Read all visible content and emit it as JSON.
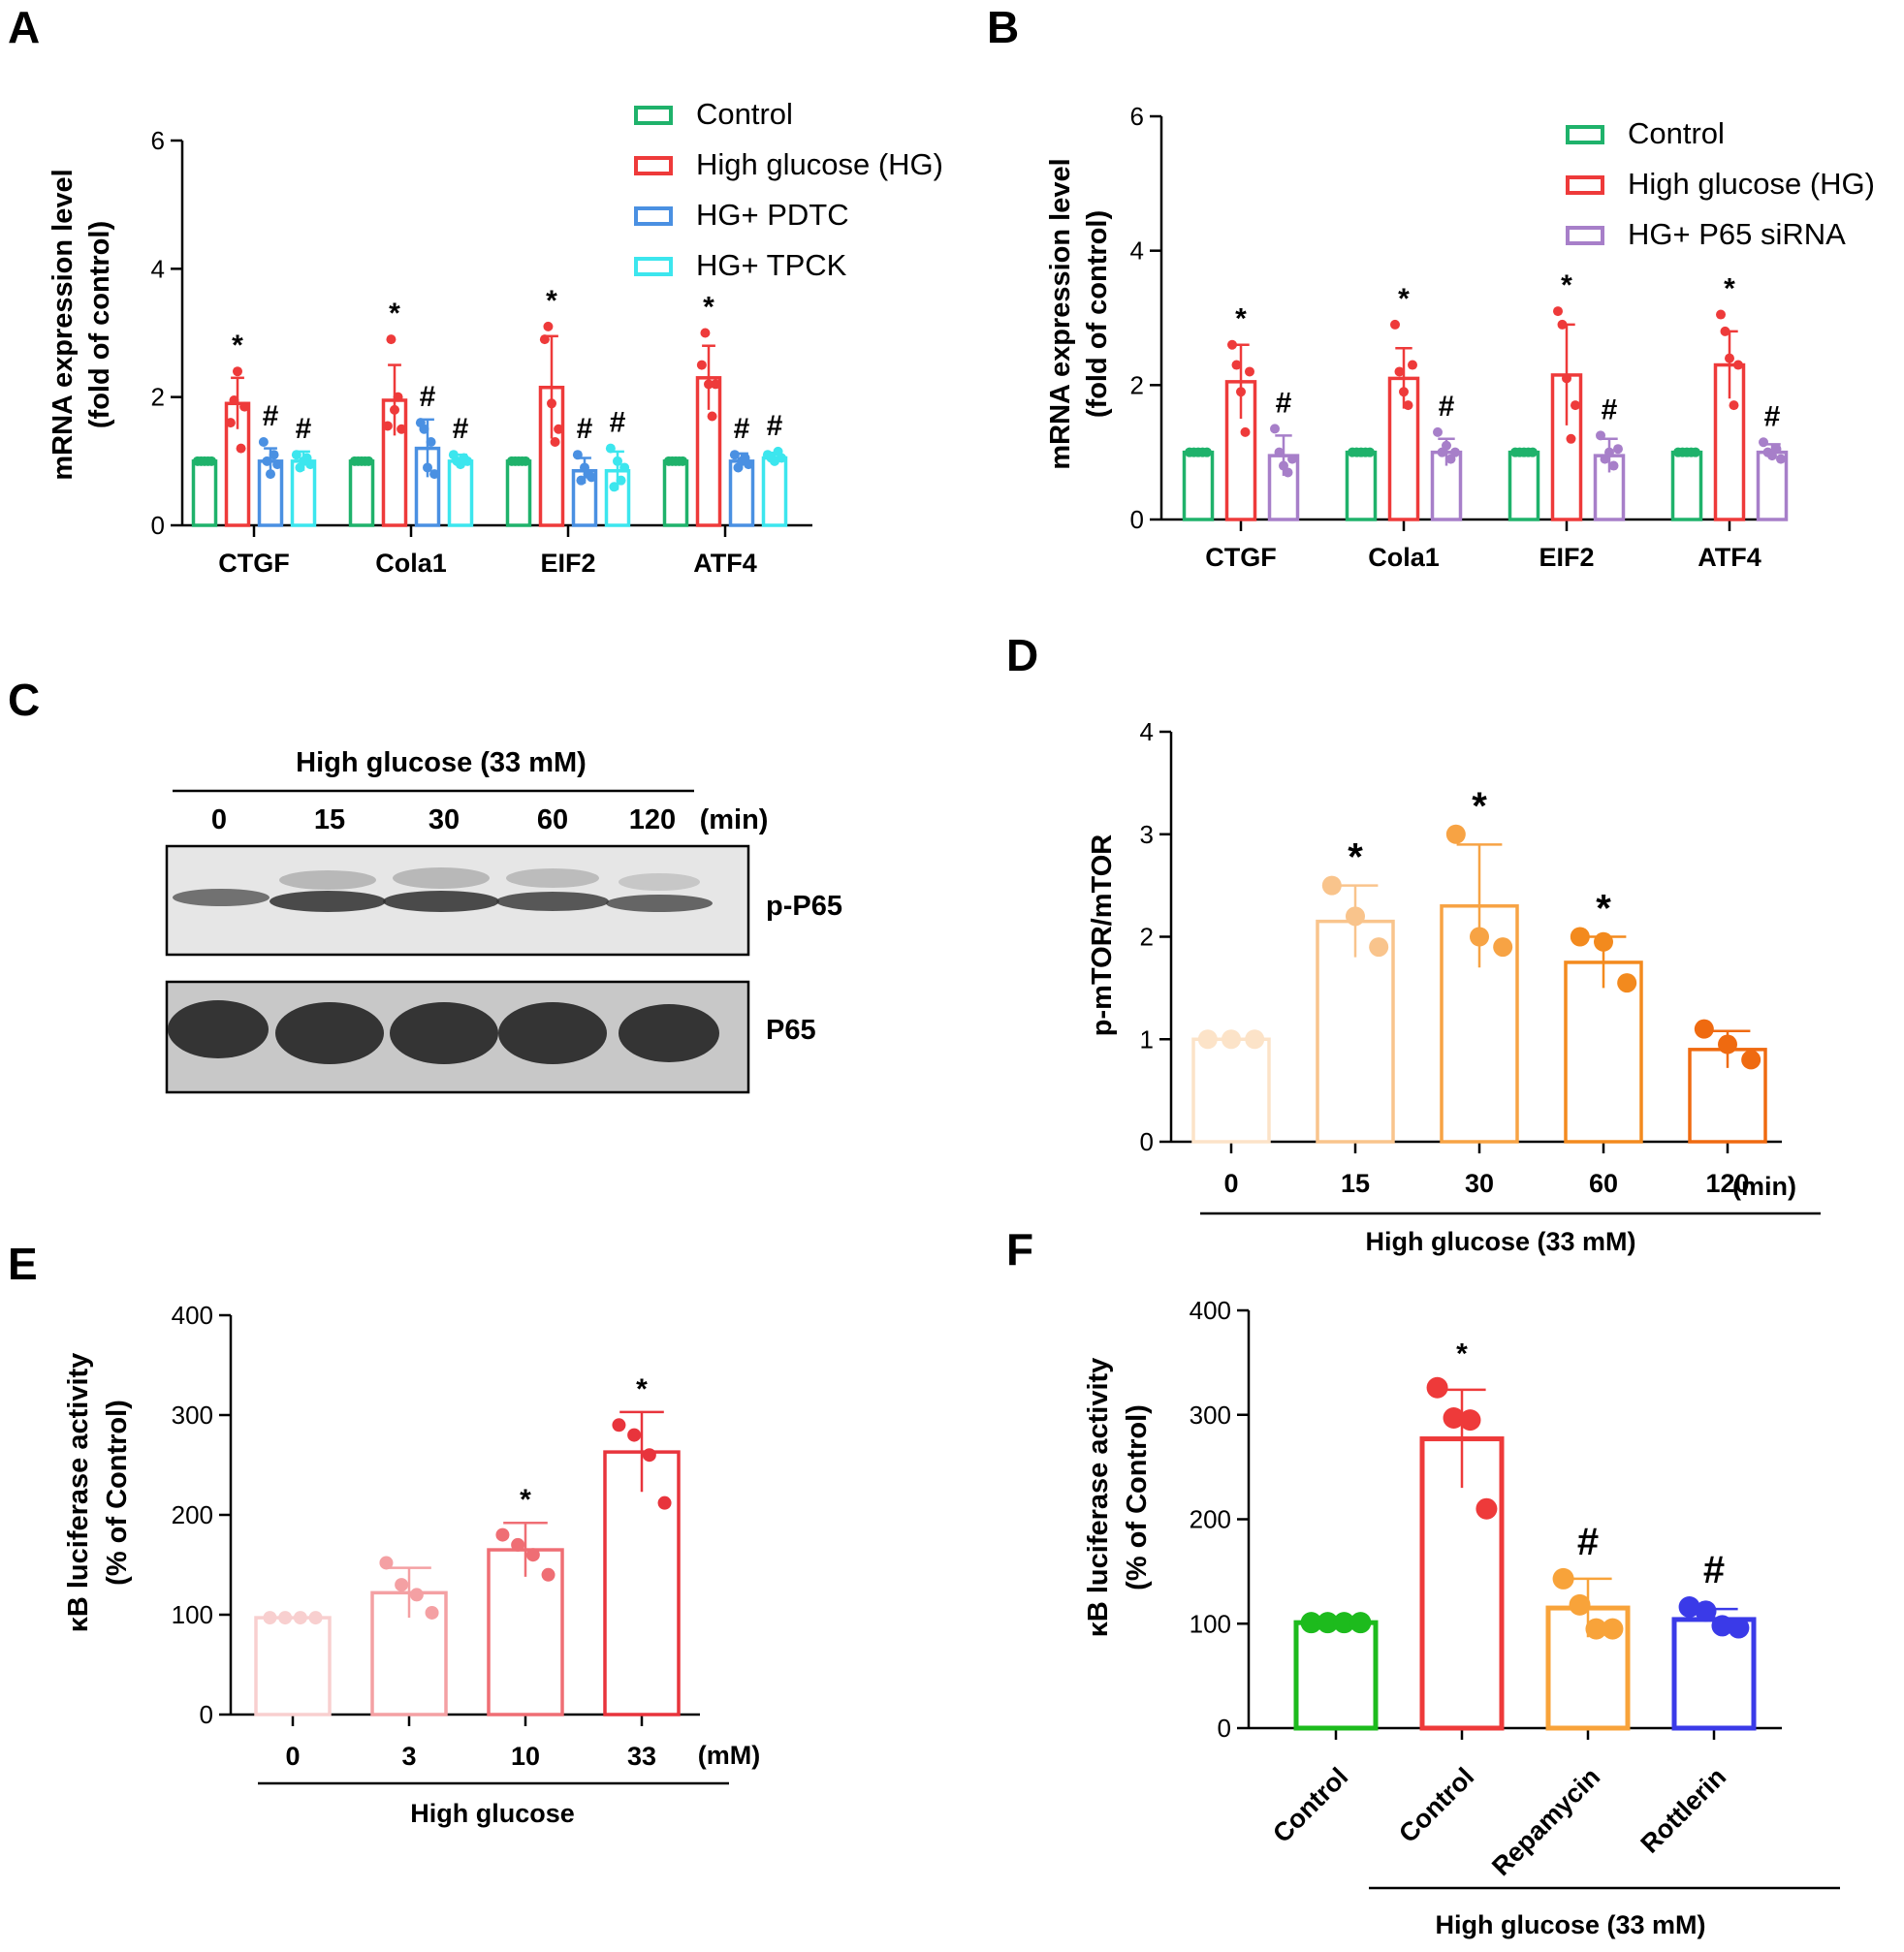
{
  "panels": {
    "A": {
      "label": "A",
      "ylabel": [
        "mRNA expression level",
        "(fold of control)"
      ],
      "ylim": [
        0,
        6
      ],
      "yticks": [
        "0",
        "2",
        "4",
        "6"
      ],
      "categories": [
        "CTGF",
        "Cola1",
        "EIF2",
        "ATF4"
      ],
      "legend": [
        "Control",
        "High glucose (HG)",
        "HG+ PDTC",
        "HG+ TPCK"
      ],
      "colors": [
        "#1fb26b",
        "#ee3a3a",
        "#4a90e2",
        "#3ce6ee"
      ]
    },
    "B": {
      "label": "B",
      "ylabel": [
        "mRNA expression level",
        "(fold of control)"
      ],
      "ylim": [
        0,
        6
      ],
      "yticks": [
        "0",
        "2",
        "4",
        "6"
      ],
      "categories": [
        "CTGF",
        "Cola1",
        "EIF2",
        "ATF4"
      ],
      "legend": [
        "Control",
        "High glucose (HG)",
        "HG+ P65 siRNA"
      ],
      "colors": [
        "#1fb26b",
        "#ee3a3a",
        "#a77fc9"
      ]
    },
    "C": {
      "label": "C",
      "treatment": "High glucose (33 mM)",
      "lanes": [
        "0",
        "15",
        "30",
        "60",
        "120"
      ],
      "unit": "(min)",
      "bands": [
        "p-P65",
        "P65"
      ]
    },
    "D": {
      "label": "D",
      "ylabel": "p-mTOR/mTOR",
      "yticks": [
        "0",
        "1",
        "2",
        "3",
        "4"
      ],
      "categories": [
        "0",
        "15",
        "30",
        "60",
        "120"
      ],
      "unit": "(min)",
      "treatment": "High glucose (33 mM)"
    },
    "E": {
      "label": "E",
      "ylabel": [
        "κB luciferase activity",
        "(% of Control)"
      ],
      "yticks": [
        "0",
        "100",
        "200",
        "300",
        "400"
      ],
      "categories": [
        "0",
        "3",
        "10",
        "33"
      ],
      "unit": "(mM)",
      "treatment": "High glucose"
    },
    "F": {
      "label": "F",
      "ylabel": [
        "κB luciferase activity",
        "(% of Control)"
      ],
      "yticks": [
        "0",
        "100",
        "200",
        "300",
        "400"
      ],
      "categories": [
        "Control",
        "Control",
        "Repamycin",
        "Rottlerin"
      ],
      "treatment": "High glucose (33 mM)"
    }
  },
  "chart_data": [
    {
      "panel": "A",
      "type": "bar",
      "ylim": [
        0,
        6
      ],
      "categories": [
        "CTGF",
        "Cola1",
        "EIF2",
        "ATF4"
      ],
      "series": [
        {
          "name": "Control",
          "color": "#1fb26b",
          "values": [
            1,
            1,
            1,
            1
          ],
          "errors": [
            0,
            0,
            0,
            0
          ],
          "points": [
            [
              1,
              1,
              1,
              1,
              1
            ],
            [
              1,
              1,
              1,
              1,
              1
            ],
            [
              1,
              1,
              1,
              1,
              1
            ],
            [
              1,
              1,
              1,
              1,
              1
            ]
          ],
          "sig": [
            "",
            "",
            "",
            ""
          ]
        },
        {
          "name": "High glucose (HG)",
          "color": "#ee3a3a",
          "values": [
            1.9,
            1.95,
            2.15,
            2.3
          ],
          "errors": [
            0.4,
            0.55,
            0.8,
            0.5
          ],
          "points": [
            [
              1.6,
              1.95,
              2.4,
              1.2,
              1.85
            ],
            [
              1.55,
              2.9,
              1.8,
              2.0,
              1.5
            ],
            [
              2.9,
              3.1,
              1.9,
              1.3,
              1.5
            ],
            [
              2.5,
              3.0,
              2.2,
              1.7,
              2.2
            ]
          ],
          "sig": [
            "*",
            "*",
            "*",
            "*"
          ]
        },
        {
          "name": "HG+ PDTC",
          "color": "#4a90e2",
          "values": [
            1.0,
            1.2,
            0.85,
            1.0
          ],
          "errors": [
            0.2,
            0.45,
            0.2,
            0.12
          ],
          "points": [
            [
              1.3,
              1.0,
              0.8,
              1.1,
              0.95
            ],
            [
              1.6,
              1.5,
              0.9,
              1.3,
              0.8
            ],
            [
              1.1,
              0.7,
              0.9,
              0.8,
              0.75
            ],
            [
              1.1,
              0.9,
              1.0,
              1.05,
              0.95
            ]
          ],
          "sig": [
            "#",
            "#",
            "#",
            "#"
          ]
        },
        {
          "name": "HG+ TPCK",
          "color": "#3ce6ee",
          "values": [
            1.0,
            1.0,
            0.85,
            1.05
          ],
          "errors": [
            0.15,
            0.1,
            0.3,
            0.08
          ],
          "points": [
            [
              1.1,
              0.9,
              1.0,
              1.05,
              0.95
            ],
            [
              1.1,
              1.0,
              0.95,
              1.05,
              1.0
            ],
            [
              1.2,
              0.6,
              1.0,
              0.7,
              0.9
            ],
            [
              1.1,
              1.05,
              1.0,
              1.15,
              1.05
            ]
          ],
          "sig": [
            "#",
            "#",
            "#",
            "#"
          ]
        }
      ]
    },
    {
      "panel": "B",
      "type": "bar",
      "ylim": [
        0,
        6
      ],
      "categories": [
        "CTGF",
        "Cola1",
        "EIF2",
        "ATF4"
      ],
      "series": [
        {
          "name": "Control",
          "color": "#1fb26b",
          "values": [
            1,
            1,
            1,
            1
          ],
          "errors": [
            0,
            0,
            0,
            0
          ],
          "points": [
            [
              1,
              1,
              1,
              1,
              1
            ],
            [
              1,
              1,
              1,
              1,
              1
            ],
            [
              1,
              1,
              1,
              1,
              1
            ],
            [
              1,
              1,
              1,
              1,
              1
            ]
          ],
          "sig": [
            "",
            "",
            "",
            ""
          ]
        },
        {
          "name": "High glucose (HG)",
          "color": "#ee3a3a",
          "values": [
            2.05,
            2.1,
            2.15,
            2.3
          ],
          "errors": [
            0.55,
            0.45,
            0.75,
            0.5
          ],
          "points": [
            [
              2.6,
              2.3,
              1.9,
              1.3,
              2.2
            ],
            [
              2.9,
              2.2,
              1.9,
              1.7,
              2.3
            ],
            [
              3.1,
              2.9,
              2.1,
              1.2,
              1.7
            ],
            [
              3.05,
              2.8,
              2.4,
              1.7,
              2.3
            ]
          ],
          "sig": [
            "*",
            "*",
            "*",
            "*"
          ]
        },
        {
          "name": "HG+ P65 siRNA",
          "color": "#a77fc9",
          "values": [
            0.95,
            1.0,
            0.95,
            1.0
          ],
          "errors": [
            0.3,
            0.2,
            0.25,
            0.12
          ],
          "points": [
            [
              1.35,
              1.0,
              0.8,
              0.7,
              0.9
            ],
            [
              1.3,
              1.0,
              1.1,
              0.9,
              1.0
            ],
            [
              1.25,
              0.9,
              1.0,
              0.8,
              1.05
            ],
            [
              1.15,
              1.0,
              0.95,
              1.05,
              0.9
            ]
          ],
          "sig": [
            "#",
            "#",
            "#",
            "#"
          ]
        }
      ]
    },
    {
      "panel": "D",
      "type": "bar",
      "ylim": [
        0,
        4
      ],
      "categories": [
        "0",
        "15",
        "30",
        "60",
        "120"
      ],
      "values": [
        1.0,
        2.15,
        2.3,
        1.75,
        0.9
      ],
      "errors": [
        0,
        0.35,
        0.6,
        0.25,
        0.18
      ],
      "points": [
        [
          1.0,
          1.0,
          1.0
        ],
        [
          2.5,
          2.2,
          1.9
        ],
        [
          3.0,
          2.0,
          1.9
        ],
        [
          2.0,
          1.95,
          1.55
        ],
        [
          1.1,
          0.95,
          0.8
        ]
      ],
      "colors": [
        "#fce3c8",
        "#f9c48c",
        "#f7a344",
        "#f38a1e",
        "#ef6a10"
      ],
      "sig": [
        "",
        "*",
        "*",
        "*",
        ""
      ]
    },
    {
      "panel": "E",
      "type": "bar",
      "ylim": [
        0,
        400
      ],
      "categories": [
        "0",
        "3",
        "10",
        "33"
      ],
      "values": [
        97,
        122,
        165,
        263
      ],
      "errors": [
        0,
        25,
        27,
        40
      ],
      "points": [
        [
          97,
          97,
          97,
          97
        ],
        [
          152,
          130,
          120,
          102
        ],
        [
          180,
          170,
          160,
          140
        ],
        [
          290,
          280,
          260,
          212
        ]
      ],
      "colors": [
        "#f8cfcf",
        "#f4a0a3",
        "#ef6e74",
        "#e8343c"
      ],
      "sig": [
        "",
        "",
        "*",
        "*"
      ]
    },
    {
      "panel": "F",
      "type": "bar",
      "ylim": [
        0,
        400
      ],
      "categories": [
        "Control",
        "Control",
        "Repamycin",
        "Rottlerin"
      ],
      "values": [
        101,
        277,
        115,
        104
      ],
      "errors": [
        0,
        47,
        28,
        10
      ],
      "points": [
        [
          101,
          101,
          101,
          101
        ],
        [
          326,
          297,
          295,
          210
        ],
        [
          143,
          118,
          95,
          95
        ],
        [
          116,
          112,
          98,
          96
        ]
      ],
      "colors": [
        "#1dbb1d",
        "#ee3a3a",
        "#f8a33a",
        "#3a3ae8"
      ],
      "sig": [
        "",
        "*",
        "#",
        "#"
      ]
    }
  ]
}
